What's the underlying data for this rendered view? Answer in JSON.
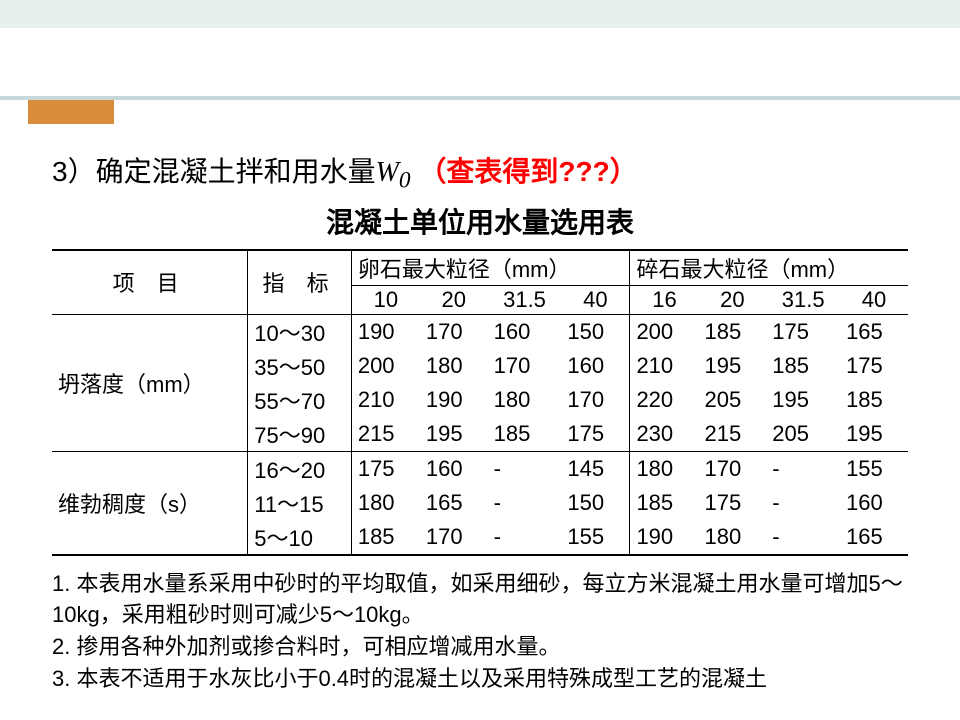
{
  "heading": {
    "num": "3）",
    "text": "确定混凝土拌和用水量",
    "var": "W",
    "sub": "0",
    "red": "（查表得到???）"
  },
  "subtitle": "混凝土单位用水量选用表",
  "headers": {
    "col1": "项  目",
    "col2": "指  标",
    "group1": "卵石最大粒径（mm）",
    "group2": "碎石最大粒径（mm）",
    "g1cols": [
      "10",
      "20",
      "31.5",
      "40"
    ],
    "g2cols": [
      "16",
      "20",
      "31.5",
      "40"
    ]
  },
  "section1": {
    "label": "坍落度（mm）",
    "indicators": [
      "10～30",
      "35～50",
      "55～70",
      "75～90"
    ],
    "data": [
      [
        "190",
        "170",
        "160",
        "150",
        "200",
        "185",
        "175",
        "165"
      ],
      [
        "200",
        "180",
        "170",
        "160",
        "210",
        "195",
        "185",
        "175"
      ],
      [
        "210",
        "190",
        "180",
        "170",
        "220",
        "205",
        "195",
        "185"
      ],
      [
        "215",
        "195",
        "185",
        "175",
        "230",
        "215",
        "205",
        "195"
      ]
    ]
  },
  "section2": {
    "label": "维勃稠度（s）",
    "indicators": [
      "16～20",
      "11～15",
      "5～10"
    ],
    "data": [
      [
        "175",
        "160",
        "-",
        "145",
        "180",
        "170",
        "-",
        "155"
      ],
      [
        "180",
        "165",
        "-",
        "150",
        "185",
        "175",
        "-",
        "160"
      ],
      [
        "185",
        "170",
        "-",
        "155",
        "190",
        "180",
        "-",
        "165"
      ]
    ]
  },
  "notes": {
    "n1": " 1. 本表用水量系采用中砂时的平均取值，如采用细砂，每立方米混凝土用水量可增加5～10kg，采用粗砂时则可减少5～10kg。",
    "n2": " 2. 掺用各种外加剂或掺合料时，可相应增减用水量。",
    "n3": " 3. 本表不适用于水灰比小于0.4时的混凝土以及采用特殊成型工艺的混凝土"
  }
}
